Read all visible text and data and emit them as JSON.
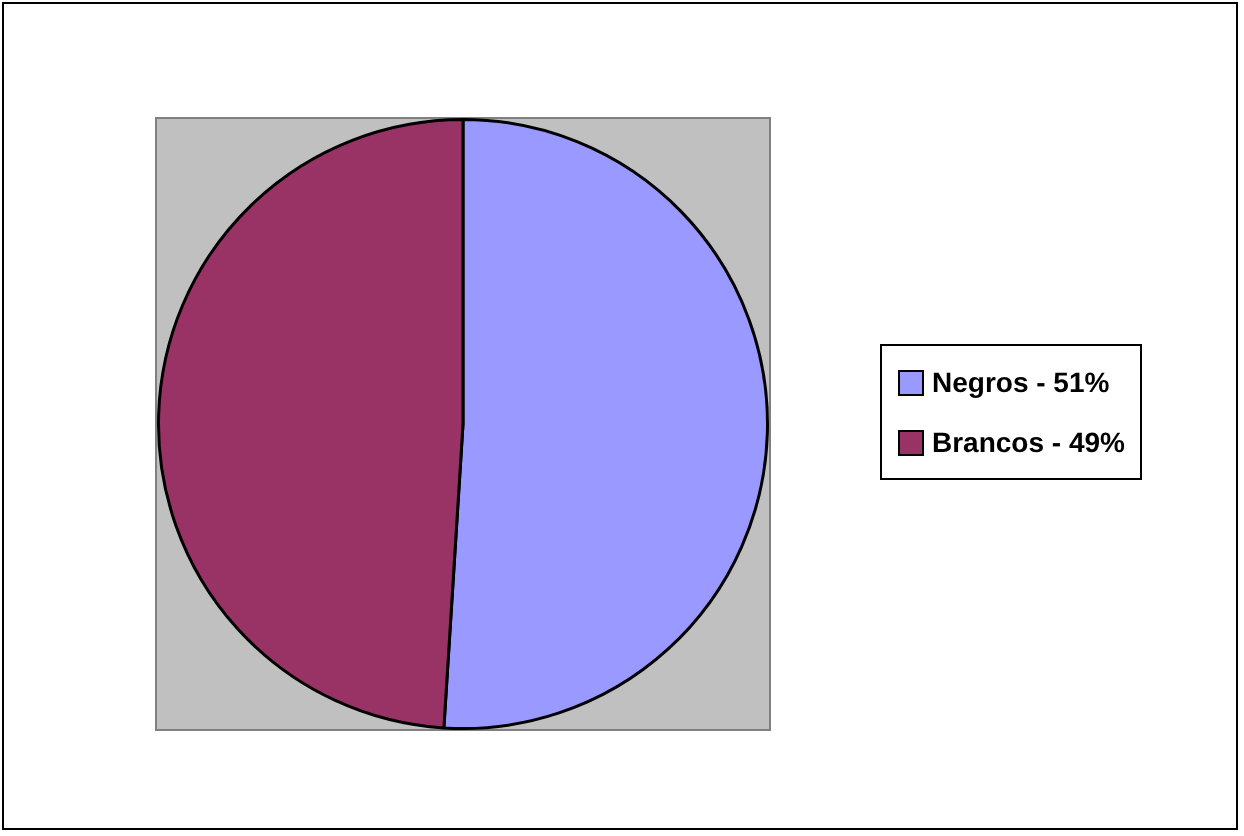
{
  "chart_data": {
    "type": "pie",
    "categories": [
      "Negros - 51%",
      "Brancos - 49%"
    ],
    "values": [
      51,
      49
    ],
    "colors": [
      "#9999ff",
      "#993366"
    ],
    "legend": "right"
  }
}
